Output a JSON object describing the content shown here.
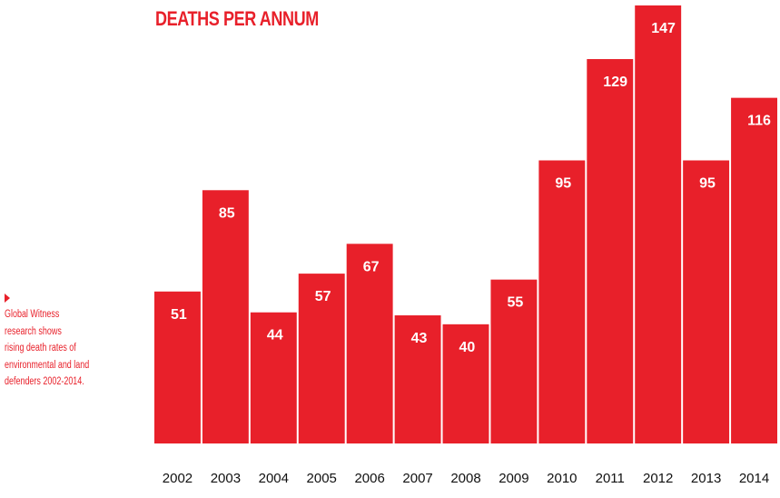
{
  "title": "DEATHS PER ANNUM",
  "caption": "Global Witness\nresearch shows\nrising death rates of\nenvironmental and land\ndefenders 2002-2014.",
  "colors": {
    "bar": "#e8202a",
    "title": "#e8202a",
    "caption": "#e8202a",
    "bar_label": "#ffffff"
  },
  "icons": {
    "caption_marker": "triangle-right-icon"
  },
  "chart_data": {
    "type": "bar",
    "title": "DEATHS PER ANNUM",
    "categories": [
      "2002",
      "2003",
      "2004",
      "2005",
      "2006",
      "2007",
      "2008",
      "2009",
      "2010",
      "2011",
      "2012",
      "2013",
      "2014"
    ],
    "values": [
      51,
      85,
      44,
      57,
      67,
      43,
      40,
      55,
      95,
      129,
      147,
      95,
      116
    ],
    "data_labels": [
      "51",
      "85",
      "44",
      "57",
      "67",
      "43",
      "40",
      "55",
      "95",
      "129",
      "147",
      "95",
      "116"
    ],
    "xlabel": "",
    "ylabel": "",
    "ylim": [
      0,
      147
    ],
    "grid": false,
    "legend": "none"
  }
}
